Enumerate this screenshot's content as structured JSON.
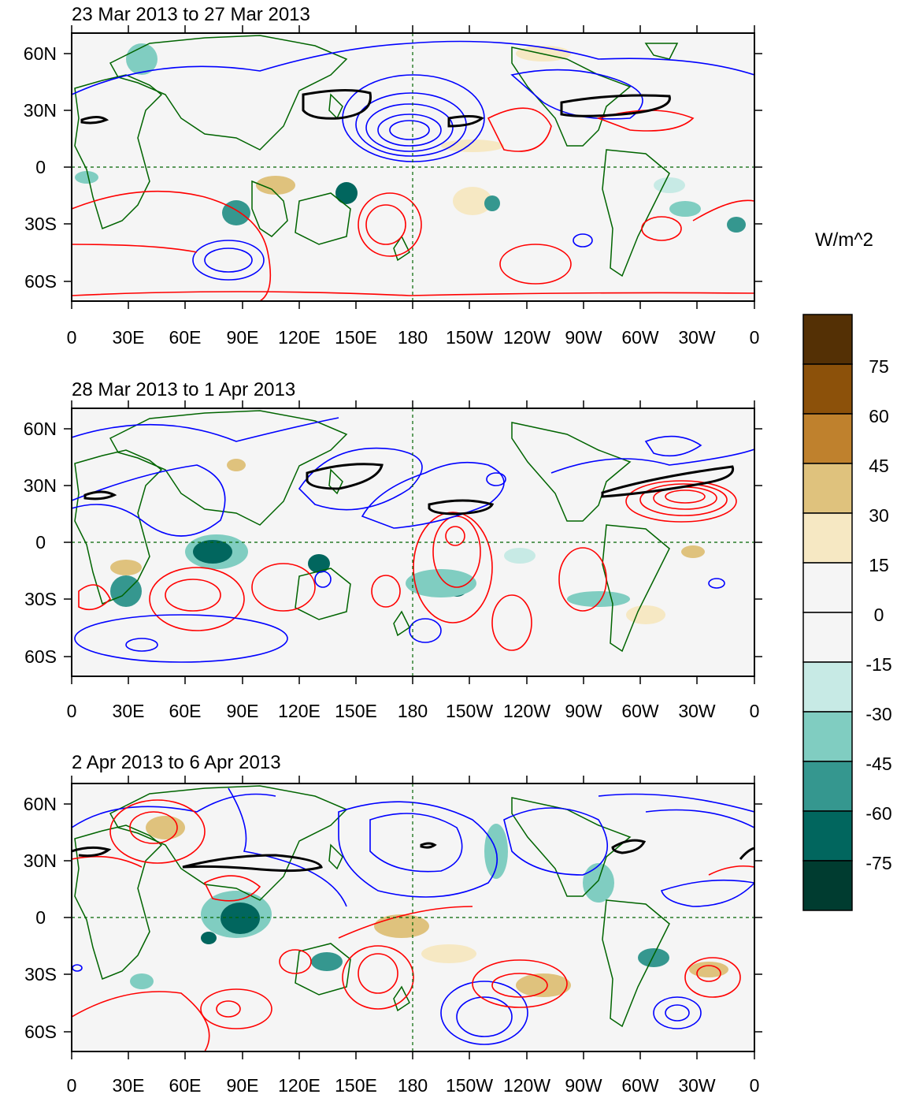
{
  "figure": {
    "panels": [
      {
        "title": "23 Mar 2013 to 27 Mar 2013"
      },
      {
        "title": "28 Mar 2013 to 1 Apr 2013"
      },
      {
        "title": "2 Apr 2013 to 6 Apr 2013"
      }
    ],
    "lat_labels": [
      "60N",
      "30N",
      "0",
      "30S",
      "60S"
    ],
    "lon_labels": [
      "0",
      "30E",
      "60E",
      "90E",
      "120E",
      "150E",
      "180",
      "150W",
      "120W",
      "90W",
      "60W",
      "30W",
      "0"
    ],
    "colorbar": {
      "units": "W/m^2",
      "labels": [
        "75",
        "60",
        "45",
        "30",
        "15",
        "0",
        "-15",
        "-30",
        "-45",
        "-60",
        "-75"
      ],
      "colors": [
        "#543005",
        "#8c510a",
        "#bf812d",
        "#dfc27d",
        "#f6e8c3",
        "#f5f5f5",
        "#f5f5f5",
        "#c7eae5",
        "#80cdc1",
        "#35978f",
        "#01665e",
        "#003c30"
      ]
    },
    "colors": {
      "positive_contour": "#ff0000",
      "negative_contour": "#0000ff",
      "zero_contour": "#000000",
      "coastline": "#006400",
      "background": "#f5f5f5"
    }
  }
}
